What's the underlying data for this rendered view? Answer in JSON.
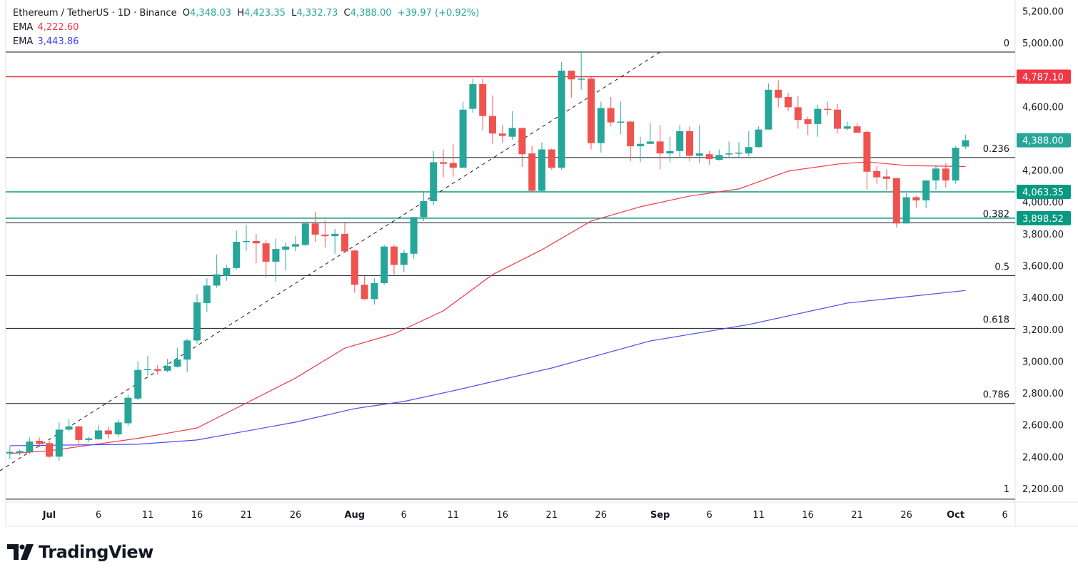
{
  "legend": {
    "symbol": "Ethereum / TetherUS · 1D · Binance",
    "open_label": "O",
    "open": "4,348.03",
    "high_label": "H",
    "high": "4,423.35",
    "low_label": "L",
    "low": "4,332.73",
    "close_label": "C",
    "close": "4,388.00",
    "change": "+39.97 (+0.92%)",
    "ema1_label": "EMA",
    "ema1": "4,222.60",
    "ema2_label": "EMA",
    "ema2": "3,443.86"
  },
  "branding": {
    "name": "TradingView"
  },
  "colors": {
    "up": "#26a69a",
    "down": "#ef5350",
    "ema1": "#f23645",
    "ema2": "#4c4cf0",
    "resistance": "#f23645",
    "support": "#089981",
    "fib": "#131722"
  },
  "chart_data": {
    "type": "candlestick",
    "ylim": [
      2115,
      5269
    ],
    "y_ticks": [
      "5,200.00",
      "5,000.00",
      "4,600.00",
      "4,200.00",
      "4,000.00",
      "3,800.00",
      "3,600.00",
      "3,400.00",
      "3,200.00",
      "3,000.00",
      "2,800.00",
      "2,600.00",
      "2,400.00",
      "2,200.00"
    ],
    "x_ticks": [
      {
        "date": "Jul 1",
        "label": "Jul",
        "bold": true
      },
      {
        "date": "Jul 6",
        "label": "6"
      },
      {
        "date": "Jul 11",
        "label": "11"
      },
      {
        "date": "Jul 16",
        "label": "16"
      },
      {
        "date": "Jul 21",
        "label": "21"
      },
      {
        "date": "Jul 26",
        "label": "26"
      },
      {
        "date": "Aug 1",
        "label": "Aug",
        "bold": true
      },
      {
        "date": "Aug 6",
        "label": "6"
      },
      {
        "date": "Aug 11",
        "label": "11"
      },
      {
        "date": "Aug 16",
        "label": "16"
      },
      {
        "date": "Aug 21",
        "label": "21"
      },
      {
        "date": "Aug 26",
        "label": "26"
      },
      {
        "date": "Sep 1",
        "label": "Sep",
        "bold": true
      },
      {
        "date": "Sep 6",
        "label": "6"
      },
      {
        "date": "Sep 11",
        "label": "11"
      },
      {
        "date": "Sep 16",
        "label": "16"
      },
      {
        "date": "Sep 21",
        "label": "21"
      },
      {
        "date": "Sep 26",
        "label": "26"
      },
      {
        "date": "Oct 1",
        "label": "Oct",
        "bold": true
      },
      {
        "date": "Oct 6",
        "label": "6"
      }
    ],
    "candles_fields": [
      "date",
      "open",
      "high",
      "low",
      "close"
    ],
    "candles": [
      [
        "Jun 27",
        2420,
        2465,
        2385,
        2430
      ],
      [
        "Jun 28",
        2425,
        2445,
        2410,
        2435
      ],
      [
        "Jun 29",
        2430,
        2520,
        2415,
        2495
      ],
      [
        "Jun 30",
        2500,
        2520,
        2460,
        2480
      ],
      [
        "Jul 1",
        2485,
        2500,
        2390,
        2400
      ],
      [
        "Jul 2",
        2400,
        2615,
        2375,
        2570
      ],
      [
        "Jul 3",
        2570,
        2635,
        2560,
        2590
      ],
      [
        "Jul 4",
        2590,
        2595,
        2475,
        2505
      ],
      [
        "Jul 5",
        2505,
        2525,
        2490,
        2515
      ],
      [
        "Jul 6",
        2510,
        2600,
        2505,
        2565
      ],
      [
        "Jul 7",
        2565,
        2590,
        2515,
        2540
      ],
      [
        "Jul 8",
        2540,
        2635,
        2525,
        2615
      ],
      [
        "Jul 9",
        2610,
        2790,
        2595,
        2770
      ],
      [
        "Jul 10",
        2765,
        3000,
        2755,
        2945
      ],
      [
        "Jul 11",
        2945,
        3035,
        2910,
        2950
      ],
      [
        "Jul 12",
        2950,
        2975,
        2915,
        2940
      ],
      [
        "Jul 13",
        2940,
        3015,
        2930,
        2970
      ],
      [
        "Jul 14",
        2965,
        3085,
        2960,
        3010
      ],
      [
        "Jul 15",
        3010,
        3140,
        2930,
        3130
      ],
      [
        "Jul 16",
        3130,
        3420,
        3110,
        3370
      ],
      [
        "Jul 17",
        3365,
        3520,
        3310,
        3475
      ],
      [
        "Jul 18",
        3475,
        3670,
        3460,
        3545
      ],
      [
        "Jul 19",
        3535,
        3605,
        3505,
        3585
      ],
      [
        "Jul 20",
        3585,
        3820,
        3575,
        3750
      ],
      [
        "Jul 21",
        3750,
        3855,
        3695,
        3755
      ],
      [
        "Jul 22",
        3755,
        3800,
        3615,
        3740
      ],
      [
        "Jul 23",
        3740,
        3760,
        3525,
        3625
      ],
      [
        "Jul 24",
        3625,
        3770,
        3500,
        3705
      ],
      [
        "Jul 25",
        3700,
        3745,
        3570,
        3720
      ],
      [
        "Jul 26",
        3720,
        3785,
        3690,
        3735
      ],
      [
        "Jul 27",
        3730,
        3875,
        3725,
        3865
      ],
      [
        "Jul 28",
        3865,
        3940,
        3750,
        3795
      ],
      [
        "Jul 29",
        3795,
        3885,
        3715,
        3785
      ],
      [
        "Jul 30",
        3785,
        3830,
        3675,
        3800
      ],
      [
        "Jul 31",
        3800,
        3875,
        3685,
        3690
      ],
      [
        "Aug 1",
        3695,
        3700,
        3430,
        3480
      ],
      [
        "Aug 2",
        3480,
        3535,
        3385,
        3390
      ],
      [
        "Aug 3",
        3390,
        3520,
        3355,
        3490
      ],
      [
        "Aug 4",
        3490,
        3730,
        3480,
        3720
      ],
      [
        "Aug 5",
        3720,
        3730,
        3545,
        3605
      ],
      [
        "Aug 6",
        3605,
        3700,
        3560,
        3680
      ],
      [
        "Aug 7",
        3675,
        3905,
        3645,
        3905
      ],
      [
        "Aug 8",
        3905,
        4070,
        3880,
        4005
      ],
      [
        "Aug 9",
        4005,
        4320,
        3980,
        4250
      ],
      [
        "Aug 10",
        4250,
        4330,
        4155,
        4240
      ],
      [
        "Aug 11",
        4245,
        4365,
        4160,
        4215
      ],
      [
        "Aug 12",
        4215,
        4630,
        4215,
        4580
      ],
      [
        "Aug 13",
        4585,
        4775,
        4560,
        4740
      ],
      [
        "Aug 14",
        4740,
        4775,
        4450,
        4540
      ],
      [
        "Aug 15",
        4540,
        4670,
        4365,
        4430
      ],
      [
        "Aug 16",
        4430,
        4485,
        4370,
        4415
      ],
      [
        "Aug 17",
        4410,
        4570,
        4390,
        4465
      ],
      [
        "Aug 18",
        4465,
        4465,
        4220,
        4300
      ],
      [
        "Aug 19",
        4305,
        4350,
        4065,
        4070
      ],
      [
        "Aug 20",
        4070,
        4375,
        4065,
        4330
      ],
      [
        "Aug 21",
        4330,
        4335,
        4200,
        4215
      ],
      [
        "Aug 22",
        4215,
        4880,
        4200,
        4825
      ],
      [
        "Aug 23",
        4825,
        4825,
        4655,
        4770
      ],
      [
        "Aug 24",
        4770,
        4950,
        4705,
        4775
      ],
      [
        "Aug 25",
        4775,
        4785,
        4330,
        4370
      ],
      [
        "Aug 26",
        4370,
        4630,
        4310,
        4590
      ],
      [
        "Aug 27",
        4590,
        4660,
        4475,
        4500
      ],
      [
        "Aug 28",
        4500,
        4630,
        4425,
        4505
      ],
      [
        "Aug 29",
        4505,
        4510,
        4255,
        4350
      ],
      [
        "Aug 30",
        4350,
        4410,
        4250,
        4365
      ],
      [
        "Aug 31",
        4365,
        4495,
        4365,
        4380
      ],
      [
        "Sep 1",
        4380,
        4485,
        4205,
        4305
      ],
      [
        "Sep 2",
        4305,
        4410,
        4250,
        4320
      ],
      [
        "Sep 3",
        4320,
        4485,
        4275,
        4445
      ],
      [
        "Sep 4",
        4445,
        4475,
        4255,
        4290
      ],
      [
        "Sep 5",
        4290,
        4485,
        4245,
        4305
      ],
      [
        "Sep 6",
        4300,
        4320,
        4235,
        4270
      ],
      [
        "Sep 7",
        4265,
        4330,
        4260,
        4295
      ],
      [
        "Sep 8",
        4300,
        4380,
        4275,
        4305
      ],
      [
        "Sep 9",
        4305,
        4375,
        4275,
        4310
      ],
      [
        "Sep 10",
        4305,
        4445,
        4285,
        4345
      ],
      [
        "Sep 11",
        4345,
        4475,
        4340,
        4455
      ],
      [
        "Sep 12",
        4455,
        4745,
        4455,
        4705
      ],
      [
        "Sep 13",
        4705,
        4765,
        4595,
        4655
      ],
      [
        "Sep 14",
        4660,
        4685,
        4570,
        4595
      ],
      [
        "Sep 15",
        4595,
        4665,
        4460,
        4515
      ],
      [
        "Sep 16",
        4520,
        4535,
        4420,
        4490
      ],
      [
        "Sep 17",
        4490,
        4610,
        4410,
        4585
      ],
      [
        "Sep 18",
        4585,
        4630,
        4545,
        4580
      ],
      [
        "Sep 19",
        4580,
        4615,
        4430,
        4460
      ],
      [
        "Sep 20",
        4460,
        4505,
        4450,
        4475
      ],
      [
        "Sep 21",
        4475,
        4495,
        4435,
        4435
      ],
      [
        "Sep 22",
        4440,
        4450,
        4075,
        4190
      ],
      [
        "Sep 23",
        4195,
        4225,
        4115,
        4155
      ],
      [
        "Sep 24",
        4160,
        4205,
        4075,
        4145
      ],
      [
        "Sep 25",
        4150,
        4150,
        3840,
        3865
      ],
      [
        "Sep 26",
        3865,
        4055,
        3865,
        4030
      ],
      [
        "Sep 27",
        4030,
        4040,
        3965,
        4010
      ],
      [
        "Sep 28",
        4010,
        4135,
        3960,
        4135
      ],
      [
        "Sep 29",
        4135,
        4230,
        4075,
        4210
      ],
      [
        "Sep 30",
        4210,
        4245,
        4090,
        4135
      ],
      [
        "Oct 1",
        4135,
        4350,
        4115,
        4340
      ],
      [
        "Oct 2",
        4348.03,
        4423.35,
        4332.73,
        4388.0
      ]
    ],
    "ema_series": [
      {
        "name": "EMA",
        "color": "#f23645",
        "points": [
          [
            "Jun 27",
            2420
          ],
          [
            "Jul 1",
            2437
          ],
          [
            "Jul 10",
            2515
          ],
          [
            "Jul 16",
            2580
          ],
          [
            "Jul 21",
            2737
          ],
          [
            "Jul 26",
            2894
          ],
          [
            "Jul 31",
            3082
          ],
          [
            "Aug 5",
            3172
          ],
          [
            "Aug 10",
            3316
          ],
          [
            "Aug 15",
            3544
          ],
          [
            "Aug 20",
            3700
          ],
          [
            "Aug 25",
            3880
          ],
          [
            "Aug 30",
            3970
          ],
          [
            "Sep 4",
            4037
          ],
          [
            "Sep 9",
            4082
          ],
          [
            "Sep 14",
            4194
          ],
          [
            "Sep 19",
            4238
          ],
          [
            "Sep 22",
            4252
          ],
          [
            "Sep 26",
            4229
          ],
          [
            "Oct 2",
            4222.6
          ]
        ]
      },
      {
        "name": "EMA",
        "color": "#4c4cf0",
        "points": [
          [
            "Jun 27",
            2469
          ],
          [
            "Jul 10",
            2478
          ],
          [
            "Jul 16",
            2505
          ],
          [
            "Jul 26",
            2617
          ],
          [
            "Aug 1",
            2702
          ],
          [
            "Aug 6",
            2747
          ],
          [
            "Aug 11",
            2814
          ],
          [
            "Aug 21",
            2957
          ],
          [
            "Aug 31",
            3127
          ],
          [
            "Sep 10",
            3230
          ],
          [
            "Sep 20",
            3365
          ],
          [
            "Oct 2",
            3443.86
          ]
        ]
      }
    ],
    "horizontal_levels": [
      {
        "price": 4787.1,
        "label": "4,787.10",
        "color": "#f23645"
      },
      {
        "price": 4063.35,
        "label": "4,063.35",
        "color": "#089981"
      },
      {
        "price": 3898.52,
        "label": "3,898.52",
        "color": "#089981"
      }
    ],
    "last_price": {
      "price": 4388.0,
      "label": "4,388.00",
      "color": "#26a69a"
    },
    "fibonacci": {
      "high": 4942,
      "low": 2133,
      "levels": [
        {
          "ratio": 0,
          "label": "0"
        },
        {
          "ratio": 0.236,
          "label": "0.236"
        },
        {
          "ratio": 0.382,
          "label": "0.382"
        },
        {
          "ratio": 0.5,
          "label": "0.5"
        },
        {
          "ratio": 0.618,
          "label": "0.618"
        },
        {
          "ratio": 0.786,
          "label": "0.786"
        },
        {
          "ratio": 1,
          "label": "1"
        }
      ]
    },
    "trend_line": {
      "style": "dashed",
      "points": [
        [
          "Jun 26",
          2312
        ],
        [
          "Sep 1",
          4942
        ]
      ]
    }
  }
}
